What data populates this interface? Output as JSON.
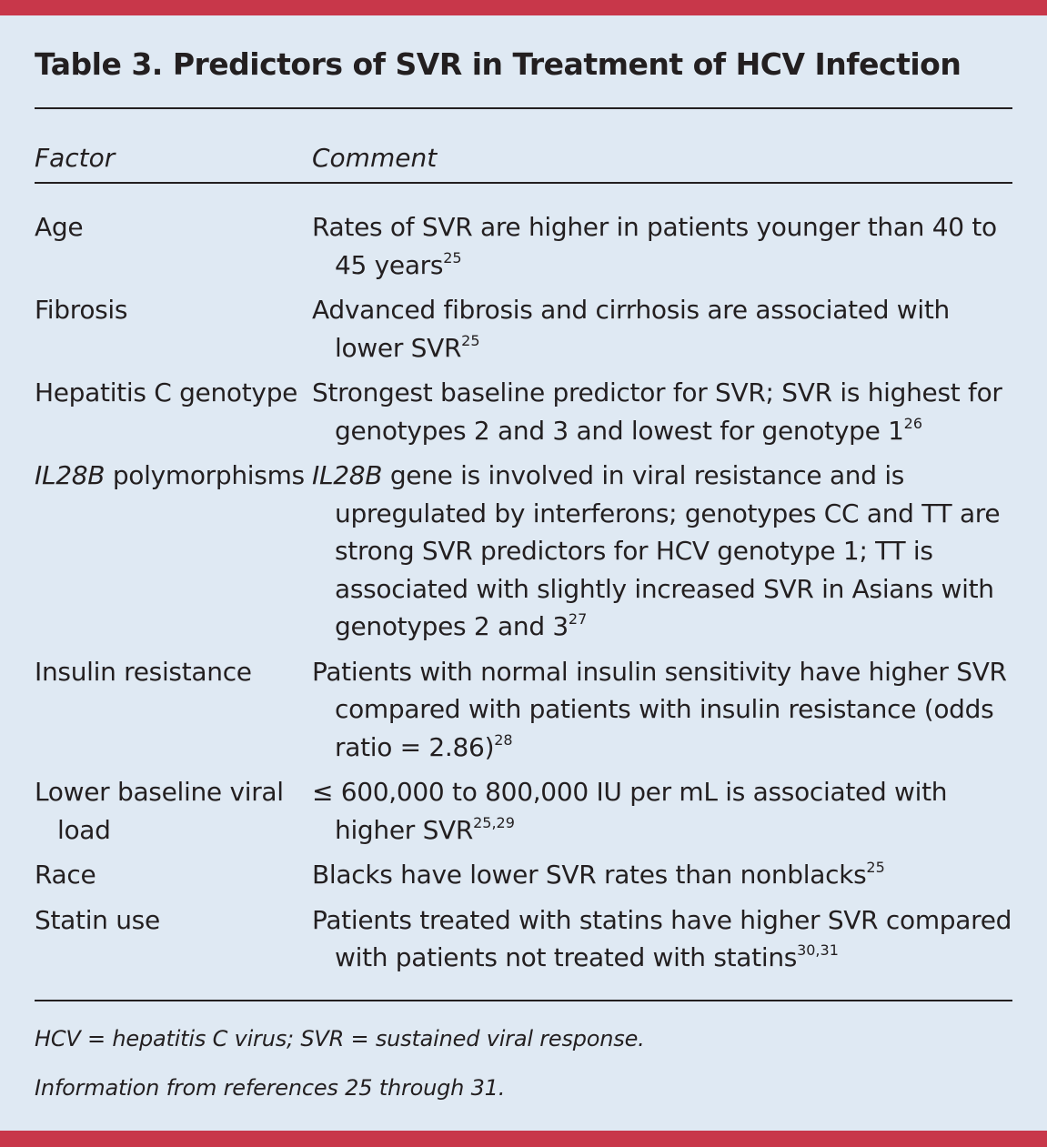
{
  "title": "Table 3. Predictors of SVR in Treatment of HCV Infection",
  "headers": {
    "factor": "Factor",
    "comment": "Comment"
  },
  "rows": [
    {
      "factor": "Age",
      "comment": "Rates of SVR are higher in patients younger than 40 to 45 years",
      "ref": "25"
    },
    {
      "factor": "Fibrosis",
      "comment": "Advanced fibrosis and cirrhosis are associated with lower SVR",
      "ref": "25"
    },
    {
      "factor": "Hepatitis C genotype",
      "comment": "Strongest baseline predictor for SVR; SVR is highest for genotypes 2 and 3 and lowest for genotype 1",
      "ref": "26"
    },
    {
      "factor_italic": "IL28B",
      "factor": "polymorphisms",
      "comment_italic": "IL28B",
      "comment": "gene is involved in viral resistance and is upregulated by interferons; genotypes CC and TT are strong SVR predictors for HCV genotype 1; TT is associated with slightly increased SVR in Asians with genotypes 2 and 3",
      "ref": "27"
    },
    {
      "factor": "Insulin resistance",
      "comment": "Patients with normal insulin sensitivity have higher SVR compared with patients with insulin resistance (odds ratio = 2.86)",
      "ref": "28"
    },
    {
      "factor": "Lower baseline viral load",
      "comment": "≤ 600,000 to 800,000 IU per mL is associated with higher SVR",
      "ref": "25,29"
    },
    {
      "factor": "Race",
      "comment": "Blacks have lower SVR rates than nonblacks",
      "ref": "25"
    },
    {
      "factor": "Statin use",
      "comment": "Patients treated with statins have higher SVR compared with patients not treated with statins",
      "ref": "30,31"
    }
  ],
  "footnotes": [
    "HCV = hepatitis C virus; SVR = sustained viral response.",
    "Information from references 25 through 31."
  ],
  "colors": {
    "accent_bar": "#c8374a",
    "background": "#dfe9f3",
    "text": "#231f20"
  }
}
